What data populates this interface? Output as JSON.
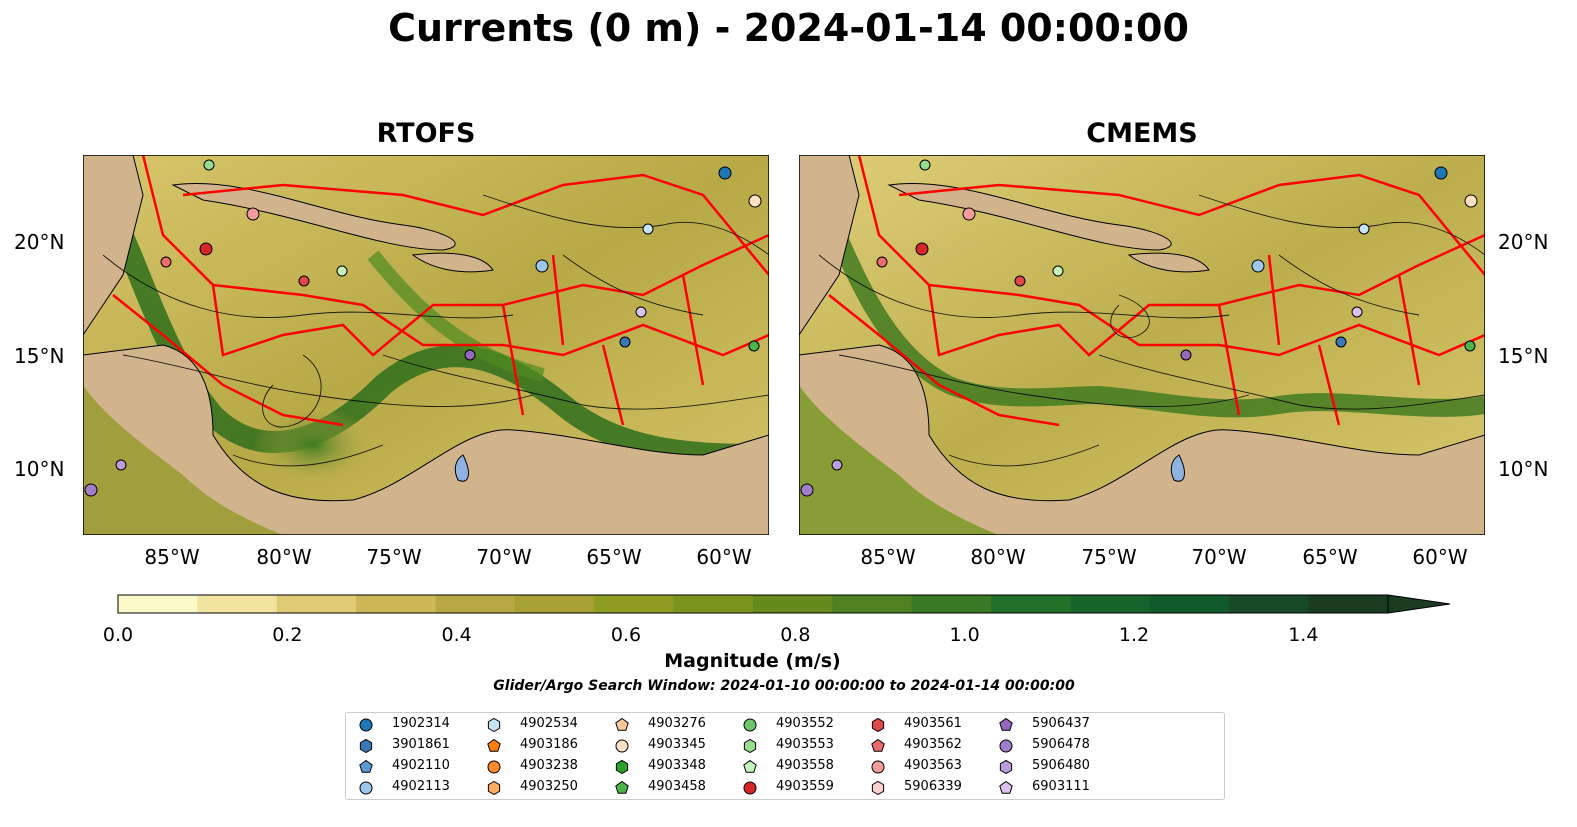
{
  "title": "Currents (0 m) - 2024-01-14 00:00:00",
  "panels": [
    {
      "title": "RTOFS"
    },
    {
      "title": "CMEMS"
    }
  ],
  "lat_labels": [
    "20°N",
    "15°N",
    "10°N"
  ],
  "lon_labels": [
    "85°W",
    "80°W",
    "75°W",
    "70°W",
    "65°W",
    "60°W"
  ],
  "colorbar": {
    "label": "Magnitude (m/s)",
    "ticks": [
      "0.0",
      "0.2",
      "0.4",
      "0.6",
      "0.8",
      "1.0",
      "1.2",
      "1.4"
    ],
    "range": [
      0.0,
      1.5
    ],
    "extend": "max",
    "colors": [
      "#fef9c8",
      "#f1e3a0",
      "#e0cb75",
      "#cdb757",
      "#b9a945",
      "#a6a132",
      "#8e9d22",
      "#79951c",
      "#638a1a",
      "#4e811f",
      "#387925",
      "#227128",
      "#14642c",
      "#115a2c",
      "#184a27",
      "#1a3b20"
    ]
  },
  "search_window": "Glider/Argo Search Window: 2024-01-10 00:00:00 to 2024-01-14 00:00:00",
  "legend": [
    {
      "id": "1902314",
      "color": "#1f77b4",
      "marker": "circle"
    },
    {
      "id": "3901861",
      "color": "#3a78b5",
      "marker": "hexagon"
    },
    {
      "id": "4902110",
      "color": "#5a9bd4",
      "marker": "pentagon"
    },
    {
      "id": "4902113",
      "color": "#9ec7ec",
      "marker": "circle"
    },
    {
      "id": "4902534",
      "color": "#c6e4f6",
      "marker": "hexagon"
    },
    {
      "id": "4903186",
      "color": "#ff7f0e",
      "marker": "pentagon"
    },
    {
      "id": "4903238",
      "color": "#ff8c2a",
      "marker": "circle"
    },
    {
      "id": "4903250",
      "color": "#ffac5e",
      "marker": "hexagon"
    },
    {
      "id": "4903276",
      "color": "#ffc99a",
      "marker": "pentagon"
    },
    {
      "id": "4903345",
      "color": "#ffe1c4",
      "marker": "circle"
    },
    {
      "id": "4903348",
      "color": "#2ca02c",
      "marker": "hexagon"
    },
    {
      "id": "4903458",
      "color": "#4ab54a",
      "marker": "pentagon"
    },
    {
      "id": "4903552",
      "color": "#6cc46c",
      "marker": "circle"
    },
    {
      "id": "4903553",
      "color": "#98dc90",
      "marker": "hexagon"
    },
    {
      "id": "4903558",
      "color": "#c5f2bd",
      "marker": "pentagon"
    },
    {
      "id": "4903559",
      "color": "#d62728",
      "marker": "circle"
    },
    {
      "id": "4903561",
      "color": "#e0474a",
      "marker": "hexagon"
    },
    {
      "id": "4903562",
      "color": "#ea6b6b",
      "marker": "pentagon"
    },
    {
      "id": "4903563",
      "color": "#f29c9a",
      "marker": "circle"
    },
    {
      "id": "5906339",
      "color": "#fcd0cf",
      "marker": "hexagon"
    },
    {
      "id": "5906437",
      "color": "#9467bd",
      "marker": "pentagon"
    },
    {
      "id": "5906478",
      "color": "#a07ec9",
      "marker": "circle"
    },
    {
      "id": "5906480",
      "color": "#bb9ddb",
      "marker": "hexagon"
    },
    {
      "id": "6903111",
      "color": "#d8c4ee",
      "marker": "pentagon"
    }
  ],
  "land_color": "#d2b48c",
  "boundary_color": "#ff0000"
}
